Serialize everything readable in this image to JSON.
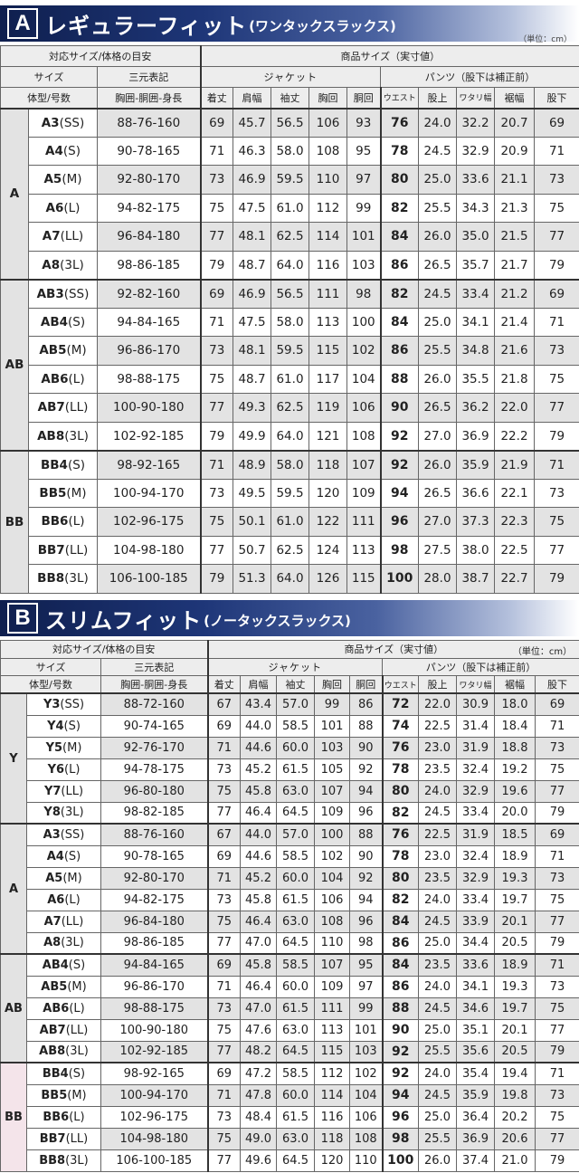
{
  "sectionA": {
    "letter": "A",
    "title": "レギュラーフィット",
    "subtitle": "(ワンタックスラックス)",
    "unit": "（単位：cm）",
    "headers": {
      "corresponding": "対応サイズ/体格の目安",
      "product": "商品サイズ（実寸値）",
      "size": "サイズ",
      "sanGen": "三元表記",
      "jacket": "ジャケット",
      "pants": "パンツ（股下は補正前）",
      "bodyType": "体型/号数",
      "measure": "胸囲-胴囲-身長",
      "cols": [
        "着丈",
        "肩幅",
        "袖丈",
        "胸回",
        "胴回",
        "ウエスト",
        "股上",
        "ワタリ幅",
        "裾幅",
        "股下"
      ]
    },
    "groups": [
      {
        "name": "A",
        "rows": [
          {
            "code": "A3",
            "s": "(SS)",
            "dim": "88-76-160",
            "v": [
              "69",
              "45.7",
              "56.5",
              "106",
              "93",
              "76",
              "24.0",
              "32.2",
              "20.7",
              "69"
            ]
          },
          {
            "code": "A4",
            "s": "(S)",
            "dim": "90-78-165",
            "v": [
              "71",
              "46.3",
              "58.0",
              "108",
              "95",
              "78",
              "24.5",
              "32.9",
              "20.9",
              "71"
            ]
          },
          {
            "code": "A5",
            "s": "(M)",
            "dim": "92-80-170",
            "v": [
              "73",
              "46.9",
              "59.5",
              "110",
              "97",
              "80",
              "25.0",
              "33.6",
              "21.1",
              "73"
            ]
          },
          {
            "code": "A6",
            "s": "(L)",
            "dim": "94-82-175",
            "v": [
              "75",
              "47.5",
              "61.0",
              "112",
              "99",
              "82",
              "25.5",
              "34.3",
              "21.3",
              "75"
            ]
          },
          {
            "code": "A7",
            "s": "(LL)",
            "dim": "96-84-180",
            "v": [
              "77",
              "48.1",
              "62.5",
              "114",
              "101",
              "84",
              "26.0",
              "35.0",
              "21.5",
              "77"
            ]
          },
          {
            "code": "A8",
            "s": "(3L)",
            "dim": "98-86-185",
            "v": [
              "79",
              "48.7",
              "64.0",
              "116",
              "103",
              "86",
              "26.5",
              "35.7",
              "21.7",
              "79"
            ]
          }
        ]
      },
      {
        "name": "AB",
        "rows": [
          {
            "code": "AB3",
            "s": "(SS)",
            "dim": "92-82-160",
            "v": [
              "69",
              "46.9",
              "56.5",
              "111",
              "98",
              "82",
              "24.5",
              "33.4",
              "21.2",
              "69"
            ]
          },
          {
            "code": "AB4",
            "s": "(S)",
            "dim": "94-84-165",
            "v": [
              "71",
              "47.5",
              "58.0",
              "113",
              "100",
              "84",
              "25.0",
              "34.1",
              "21.4",
              "71"
            ]
          },
          {
            "code": "AB5",
            "s": "(M)",
            "dim": "96-86-170",
            "v": [
              "73",
              "48.1",
              "59.5",
              "115",
              "102",
              "86",
              "25.5",
              "34.8",
              "21.6",
              "73"
            ]
          },
          {
            "code": "AB6",
            "s": "(L)",
            "dim": "98-88-175",
            "v": [
              "75",
              "48.7",
              "61.0",
              "117",
              "104",
              "88",
              "26.0",
              "35.5",
              "21.8",
              "75"
            ]
          },
          {
            "code": "AB7",
            "s": "(LL)",
            "dim": "100-90-180",
            "v": [
              "77",
              "49.3",
              "62.5",
              "119",
              "106",
              "90",
              "26.5",
              "36.2",
              "22.0",
              "77"
            ]
          },
          {
            "code": "AB8",
            "s": "(3L)",
            "dim": "102-92-185",
            "v": [
              "79",
              "49.9",
              "64.0",
              "121",
              "108",
              "92",
              "27.0",
              "36.9",
              "22.2",
              "79"
            ]
          }
        ]
      },
      {
        "name": "BB",
        "rows": [
          {
            "code": "BB4",
            "s": "(S)",
            "dim": "98-92-165",
            "v": [
              "71",
              "48.9",
              "58.0",
              "118",
              "107",
              "92",
              "26.0",
              "35.9",
              "21.9",
              "71"
            ]
          },
          {
            "code": "BB5",
            "s": "(M)",
            "dim": "100-94-170",
            "v": [
              "73",
              "49.5",
              "59.5",
              "120",
              "109",
              "94",
              "26.5",
              "36.6",
              "22.1",
              "73"
            ]
          },
          {
            "code": "BB6",
            "s": "(L)",
            "dim": "102-96-175",
            "v": [
              "75",
              "50.1",
              "61.0",
              "122",
              "111",
              "96",
              "27.0",
              "37.3",
              "22.3",
              "75"
            ]
          },
          {
            "code": "BB7",
            "s": "(LL)",
            "dim": "104-98-180",
            "v": [
              "77",
              "50.7",
              "62.5",
              "124",
              "113",
              "98",
              "27.5",
              "38.0",
              "22.5",
              "77"
            ]
          },
          {
            "code": "BB8",
            "s": "(3L)",
            "dim": "106-100-185",
            "v": [
              "79",
              "51.3",
              "64.0",
              "126",
              "115",
              "100",
              "28.0",
              "38.7",
              "22.7",
              "79"
            ]
          }
        ]
      }
    ]
  },
  "sectionB": {
    "letter": "B",
    "title": "スリムフィット",
    "subtitle": "(ノータックスラックス)",
    "unit": "（単位：cm）",
    "headers": {
      "corresponding": "対応サイズ/体格の目安",
      "product": "商品サイズ（実寸値）",
      "size": "サイズ",
      "sanGen": "三元表記",
      "jacket": "ジャケット",
      "pants": "パンツ（股下は補正前）",
      "bodyType": "体型/号数",
      "measure": "胸囲-胴囲-身長",
      "cols": [
        "着丈",
        "肩幅",
        "袖丈",
        "胸回",
        "胴回",
        "ウエスト",
        "股上",
        "ワタリ幅",
        "裾幅",
        "股下"
      ]
    },
    "groups": [
      {
        "name": "Y",
        "rows": [
          {
            "code": "Y3",
            "s": "(SS)",
            "dim": "88-72-160",
            "v": [
              "67",
              "43.4",
              "57.0",
              "99",
              "86",
              "72",
              "22.0",
              "30.9",
              "18.0",
              "69"
            ]
          },
          {
            "code": "Y4",
            "s": "(S)",
            "dim": "90-74-165",
            "v": [
              "69",
              "44.0",
              "58.5",
              "101",
              "88",
              "74",
              "22.5",
              "31.4",
              "18.4",
              "71"
            ]
          },
          {
            "code": "Y5",
            "s": "(M)",
            "dim": "92-76-170",
            "v": [
              "71",
              "44.6",
              "60.0",
              "103",
              "90",
              "76",
              "23.0",
              "31.9",
              "18.8",
              "73"
            ]
          },
          {
            "code": "Y6",
            "s": "(L)",
            "dim": "94-78-175",
            "v": [
              "73",
              "45.2",
              "61.5",
              "105",
              "92",
              "78",
              "23.5",
              "32.4",
              "19.2",
              "75"
            ]
          },
          {
            "code": "Y7",
            "s": "(LL)",
            "dim": "96-80-180",
            "v": [
              "75",
              "45.8",
              "63.0",
              "107",
              "94",
              "80",
              "24.0",
              "32.9",
              "19.6",
              "77"
            ]
          },
          {
            "code": "Y8",
            "s": "(3L)",
            "dim": "98-82-185",
            "v": [
              "77",
              "46.4",
              "64.5",
              "109",
              "96",
              "82",
              "24.5",
              "33.4",
              "20.0",
              "79"
            ]
          }
        ]
      },
      {
        "name": "A",
        "rows": [
          {
            "code": "A3",
            "s": "(SS)",
            "dim": "88-76-160",
            "v": [
              "67",
              "44.0",
              "57.0",
              "100",
              "88",
              "76",
              "22.5",
              "31.9",
              "18.5",
              "69"
            ]
          },
          {
            "code": "A4",
            "s": "(S)",
            "dim": "90-78-165",
            "v": [
              "69",
              "44.6",
              "58.5",
              "102",
              "90",
              "78",
              "23.0",
              "32.4",
              "18.9",
              "71"
            ]
          },
          {
            "code": "A5",
            "s": "(M)",
            "dim": "92-80-170",
            "v": [
              "71",
              "45.2",
              "60.0",
              "104",
              "92",
              "80",
              "23.5",
              "32.9",
              "19.3",
              "73"
            ]
          },
          {
            "code": "A6",
            "s": "(L)",
            "dim": "94-82-175",
            "v": [
              "73",
              "45.8",
              "61.5",
              "106",
              "94",
              "82",
              "24.0",
              "33.4",
              "19.7",
              "75"
            ]
          },
          {
            "code": "A7",
            "s": "(LL)",
            "dim": "96-84-180",
            "v": [
              "75",
              "46.4",
              "63.0",
              "108",
              "96",
              "84",
              "24.5",
              "33.9",
              "20.1",
              "77"
            ]
          },
          {
            "code": "A8",
            "s": "(3L)",
            "dim": "98-86-185",
            "v": [
              "77",
              "47.0",
              "64.5",
              "110",
              "98",
              "86",
              "25.0",
              "34.4",
              "20.5",
              "79"
            ]
          }
        ]
      },
      {
        "name": "AB",
        "rows": [
          {
            "code": "AB4",
            "s": "(S)",
            "dim": "94-84-165",
            "v": [
              "69",
              "45.8",
              "58.5",
              "107",
              "95",
              "84",
              "23.5",
              "33.6",
              "18.9",
              "71"
            ]
          },
          {
            "code": "AB5",
            "s": "(M)",
            "dim": "96-86-170",
            "v": [
              "71",
              "46.4",
              "60.0",
              "109",
              "97",
              "86",
              "24.0",
              "34.1",
              "19.3",
              "73"
            ]
          },
          {
            "code": "AB6",
            "s": "(L)",
            "dim": "98-88-175",
            "v": [
              "73",
              "47.0",
              "61.5",
              "111",
              "99",
              "88",
              "24.5",
              "34.6",
              "19.7",
              "75"
            ]
          },
          {
            "code": "AB7",
            "s": "(LL)",
            "dim": "100-90-180",
            "v": [
              "75",
              "47.6",
              "63.0",
              "113",
              "101",
              "90",
              "25.0",
              "35.1",
              "20.1",
              "77"
            ]
          },
          {
            "code": "AB8",
            "s": "(3L)",
            "dim": "102-92-185",
            "v": [
              "77",
              "48.2",
              "64.5",
              "115",
              "103",
              "92",
              "25.5",
              "35.6",
              "20.5",
              "79"
            ]
          }
        ]
      },
      {
        "name": "BB",
        "rows": [
          {
            "code": "BB4",
            "s": "(S)",
            "dim": "98-92-165",
            "v": [
              "69",
              "47.2",
              "58.5",
              "112",
              "102",
              "92",
              "24.0",
              "35.4",
              "19.4",
              "71"
            ]
          },
          {
            "code": "BB5",
            "s": "(M)",
            "dim": "100-94-170",
            "v": [
              "71",
              "47.8",
              "60.0",
              "114",
              "104",
              "94",
              "24.5",
              "35.9",
              "19.8",
              "73"
            ]
          },
          {
            "code": "BB6",
            "s": "(L)",
            "dim": "102-96-175",
            "v": [
              "73",
              "48.4",
              "61.5",
              "116",
              "106",
              "96",
              "25.0",
              "36.4",
              "20.2",
              "75"
            ]
          },
          {
            "code": "BB7",
            "s": "(LL)",
            "dim": "104-98-180",
            "v": [
              "75",
              "49.0",
              "63.0",
              "118",
              "108",
              "98",
              "25.5",
              "36.9",
              "20.6",
              "77"
            ]
          },
          {
            "code": "BB8",
            "s": "(3L)",
            "dim": "106-100-185",
            "v": [
              "77",
              "49.6",
              "64.5",
              "120",
              "110",
              "100",
              "26.0",
              "37.4",
              "21.0",
              "79"
            ]
          }
        ]
      }
    ]
  }
}
